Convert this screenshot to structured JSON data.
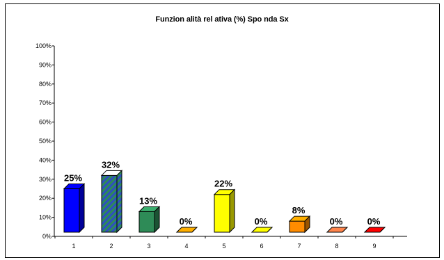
{
  "chart_data": {
    "type": "bar",
    "title": "Funzion alità rel ativa (%) Spo nda Sx",
    "xlabel": "",
    "ylabel": "",
    "categories": [
      "1",
      "2",
      "3",
      "4",
      "5",
      "6",
      "7",
      "8",
      "9"
    ],
    "values": [
      25,
      32,
      13,
      0,
      22,
      0,
      8,
      0,
      0
    ],
    "data_labels": [
      "25%",
      "32%",
      "13%",
      "0%",
      "22%",
      "0%",
      "8%",
      "0%",
      "0%"
    ],
    "ylim": [
      0,
      100
    ],
    "yticks": [
      0,
      10,
      20,
      30,
      40,
      50,
      60,
      70,
      80,
      90,
      100
    ],
    "ytick_labels": [
      "0%",
      "10%",
      "20%",
      "30%",
      "40%",
      "50%",
      "60%",
      "70%",
      "80%",
      "90%",
      "100%"
    ],
    "grid": false,
    "legend": "none",
    "bar_colors": [
      "#0000ff",
      "#2e8b57",
      "#2e8b57",
      "#ff8c00",
      "#ffff00",
      "#ffd000",
      "#ff8c00",
      "#ff6a3d",
      "#cc0000"
    ],
    "bar_patterns": [
      "solid",
      "stripes-blue-green",
      "solid",
      "solid",
      "solid",
      "solid",
      "solid",
      "solid",
      "solid"
    ]
  }
}
